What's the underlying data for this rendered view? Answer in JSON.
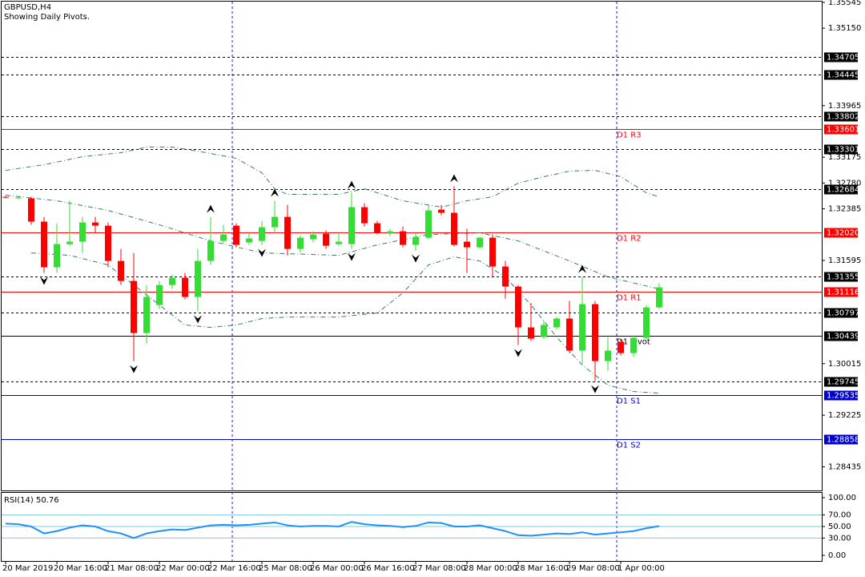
{
  "chart_data": {
    "type": "candlestick",
    "title": "GBPUSD,H4",
    "subtitle": "Showing Daily Pivots.",
    "up_color": "#33dd33",
    "down_color": "#ff0000",
    "categories": [
      "20 Mar 2019",
      null,
      null,
      null,
      "20 Mar 16:00",
      null,
      null,
      null,
      "21 Mar 08:00",
      null,
      null,
      null,
      "22 Mar 00:00",
      null,
      null,
      null,
      "22 Mar 16:00",
      null,
      null,
      null,
      "25 Mar 08:00",
      null,
      null,
      null,
      "26 Mar 00:00",
      null,
      null,
      null,
      "26 Mar 16:00",
      null,
      null,
      null,
      "27 Mar 08:00",
      null,
      null,
      null,
      "28 Mar 00:00",
      null,
      null,
      null,
      "28 Mar 16:00",
      null,
      null,
      null,
      "29 Mar 08:00",
      null,
      null,
      null,
      "1 Apr 00:00",
      null,
      null,
      null
    ],
    "open": [
      1.32569,
      1.32545,
      1.32545,
      1.32189,
      1.3149,
      1.31845,
      1.31882,
      1.32176,
      1.32127,
      1.31587,
      1.31281,
      1.30484,
      1.30913,
      1.31219,
      1.3133,
      1.31036,
      1.31587,
      1.31894,
      1.32127,
      1.3187,
      1.31894,
      1.32103,
      1.32262,
      1.31771,
      1.31919,
      1.32005,
      1.31845,
      1.31845,
      1.3241,
      1.32164,
      1.32005,
      1.32041,
      1.31833,
      1.31943,
      1.32373,
      1.32324,
      1.31882,
      1.31796,
      1.31943,
      1.31502,
      1.31195,
      1.3057,
      1.30422,
      1.3057,
      1.30705,
      1.30214,
      1.30926,
      1.30054,
      1.30349,
      1.30177,
      1.3041,
      1.30876
    ],
    "high": [
      1.32581,
      1.32569,
      1.32569,
      1.32262,
      1.32164,
      1.32508,
      1.32262,
      1.32262,
      1.32176,
      1.31771,
      1.3171,
      1.31219,
      1.31281,
      1.31379,
      1.31404,
      1.31771,
      1.32262,
      1.3214,
      1.32164,
      1.32017,
      1.32201,
      1.32508,
      1.32446,
      1.3198,
      1.32041,
      1.32054,
      1.32017,
      1.3263,
      1.32471,
      1.32201,
      1.32078,
      1.32115,
      1.32017,
      1.32446,
      1.32446,
      1.32729,
      1.32078,
      1.31955,
      1.31992,
      1.31587,
      1.31219,
      1.30938,
      1.30668,
      1.30729,
      1.30975,
      1.31342,
      1.30975,
      1.30422,
      1.30386,
      1.30447,
      1.30913,
      1.31244
    ],
    "low": [
      1.32545,
      1.32533,
      1.3214,
      1.31404,
      1.31404,
      1.3182,
      1.3171,
      1.32017,
      1.3149,
      1.31219,
      1.30054,
      1.30324,
      1.30852,
      1.31158,
      1.30999,
      1.30815,
      1.31526,
      1.31857,
      1.31796,
      1.31833,
      1.31833,
      1.32017,
      1.31673,
      1.3171,
      1.3187,
      1.31771,
      1.3182,
      1.31771,
      1.32115,
      1.31992,
      1.31968,
      1.31796,
      1.31747,
      1.31919,
      1.32287,
      1.31808,
      1.31404,
      1.31771,
      1.31342,
      1.31011,
      1.303,
      1.30361,
      1.30398,
      1.30545,
      1.30177,
      1.30017,
      1.29747,
      1.29907,
      1.3014,
      1.30116,
      1.30386,
      1.30852
    ],
    "close": [
      1.32557,
      1.32557,
      1.32189,
      1.3149,
      1.31845,
      1.31882,
      1.32176,
      1.32127,
      1.31587,
      1.31281,
      1.30484,
      1.31036,
      1.31219,
      1.3133,
      1.31036,
      1.31587,
      1.31894,
      1.31992,
      1.31833,
      1.31931,
      1.32103,
      1.32262,
      1.31771,
      1.31943,
      1.31992,
      1.3182,
      1.31882,
      1.3241,
      1.32164,
      1.32017,
      1.32041,
      1.31833,
      1.31955,
      1.3236,
      1.32324,
      1.31833,
      1.31796,
      1.31943,
      1.31502,
      1.31195,
      1.3057,
      1.30398,
      1.30607,
      1.30705,
      1.30214,
      1.30926,
      1.30054,
      1.30214,
      1.30177,
      1.3041,
      1.30876,
      1.31183
    ],
    "bands": [
      {
        "color": "#3c7a6a",
        "x": [
          0,
          3,
          6,
          9,
          11,
          13,
          15,
          18,
          20,
          21,
          22,
          26,
          28,
          31,
          34,
          36,
          38,
          40,
          42,
          44,
          46,
          48,
          50,
          51
        ],
        "values": [
          1.32974,
          1.3306,
          1.33183,
          1.33244,
          1.3333,
          1.3333,
          1.33268,
          1.33158,
          1.32937,
          1.32692,
          1.32606,
          1.32606,
          1.32692,
          1.32508,
          1.3241,
          1.32508,
          1.32569,
          1.32778,
          1.32876,
          1.32962,
          1.32974,
          1.32876,
          1.3263,
          1.32569
        ]
      },
      {
        "color": "#3c7a6a",
        "x": [
          0,
          4,
          8,
          12,
          16,
          20,
          26,
          29,
          33,
          37,
          40,
          44,
          47,
          51
        ],
        "values": [
          1.32594,
          1.32508,
          1.3236,
          1.3214,
          1.31894,
          1.3171,
          1.31673,
          1.31833,
          1.31992,
          1.32017,
          1.31894,
          1.31587,
          1.31342,
          1.31158
        ]
      },
      {
        "color": "#3c7a6a",
        "x": [
          2,
          5,
          8,
          10,
          12,
          14,
          16,
          18,
          20,
          22,
          26,
          29,
          31,
          33,
          35,
          37,
          39,
          41,
          43,
          45,
          47,
          49,
          51
        ],
        "values": [
          1.3171,
          1.31673,
          1.31526,
          1.31219,
          1.30913,
          1.30607,
          1.3057,
          1.30607,
          1.30705,
          1.30729,
          1.30729,
          1.3079,
          1.31097,
          1.31526,
          1.31649,
          1.31587,
          1.31342,
          1.30913,
          1.30422,
          1.29993,
          1.29686,
          1.29588,
          1.29563
        ]
      }
    ],
    "fractals": {
      "up": [
        16,
        21,
        27,
        35,
        45
      ],
      "down": [
        3,
        10,
        15,
        20,
        27,
        32,
        40,
        46
      ]
    },
    "ylim": [
      1.28074,
      1.35557
    ],
    "yticks": [
      1.35545,
      {
        "value": 1.3515,
        "label": "1.35150"
      },
      1.33965,
      1.33175,
      {
        "value": 1.3278,
        "label": "1.32780"
      },
      1.32385,
      1.31595,
      1.30015,
      1.29225,
      1.28435
    ],
    "levels": [
      {
        "value": 1.34705,
        "style": "dash",
        "color": "#000000"
      },
      {
        "value": 1.34445,
        "style": "dash",
        "color": "#000000"
      },
      {
        "value": 1.33802,
        "style": "dash",
        "color": "#000000"
      },
      {
        "value": 1.33601,
        "style": "solid",
        "color": "#ff0000",
        "name": "D1 R3"
      },
      {
        "value": 1.33301,
        "style": "dash",
        "color": "#000000"
      },
      {
        "value": 1.32684,
        "style": "dash",
        "color": "#000000"
      },
      {
        "value": 1.3202,
        "label": "1.32020",
        "style": "solid",
        "color": "#ff0000",
        "name": "D1 R2"
      },
      {
        "value": 1.31355,
        "style": "dash",
        "color": "#000000"
      },
      {
        "value": 1.31116,
        "style": "solid",
        "color": "#ff0000",
        "name": "D1 R1"
      },
      {
        "value": 1.30797,
        "style": "dash",
        "color": "#000000"
      },
      {
        "value": 1.30439,
        "style": "solid",
        "color": "#000000",
        "name": "D1 Pivot"
      },
      {
        "value": 1.29745,
        "style": "dash",
        "color": "#000000"
      },
      {
        "value": 1.29535,
        "style": "solid",
        "color": "#0000cc",
        "name": "D1 S1"
      },
      {
        "value": 1.28858,
        "style": "solid",
        "color": "#0000cc",
        "name": "D1 S2"
      }
    ],
    "rsi": {
      "label": "RSI(14) 50.76",
      "color": "#1e90ff",
      "level_color": "#7ec8e3",
      "values": [
        55,
        54,
        50,
        38,
        42,
        48,
        52,
        50,
        42,
        38,
        30,
        38,
        42,
        45,
        44,
        48,
        52,
        53,
        52,
        53,
        55,
        57,
        52,
        50,
        51,
        51,
        50,
        58,
        54,
        52,
        51,
        49,
        51,
        57,
        56,
        50,
        50,
        52,
        47,
        42,
        35,
        34,
        36,
        38,
        37,
        40,
        36,
        38,
        40,
        42,
        47,
        50.76
      ],
      "ylim": [
        -9.7,
        109.7
      ],
      "yticks": [
        {
          "value": 100,
          "label": "100.00"
        },
        {
          "value": 70,
          "label": "70.00"
        },
        {
          "value": 50,
          "label": "50.00"
        },
        {
          "value": 30,
          "label": "30.00"
        },
        {
          "value": 0,
          "label": "0.00"
        }
      ],
      "levels": [
        70,
        50,
        30
      ]
    }
  }
}
